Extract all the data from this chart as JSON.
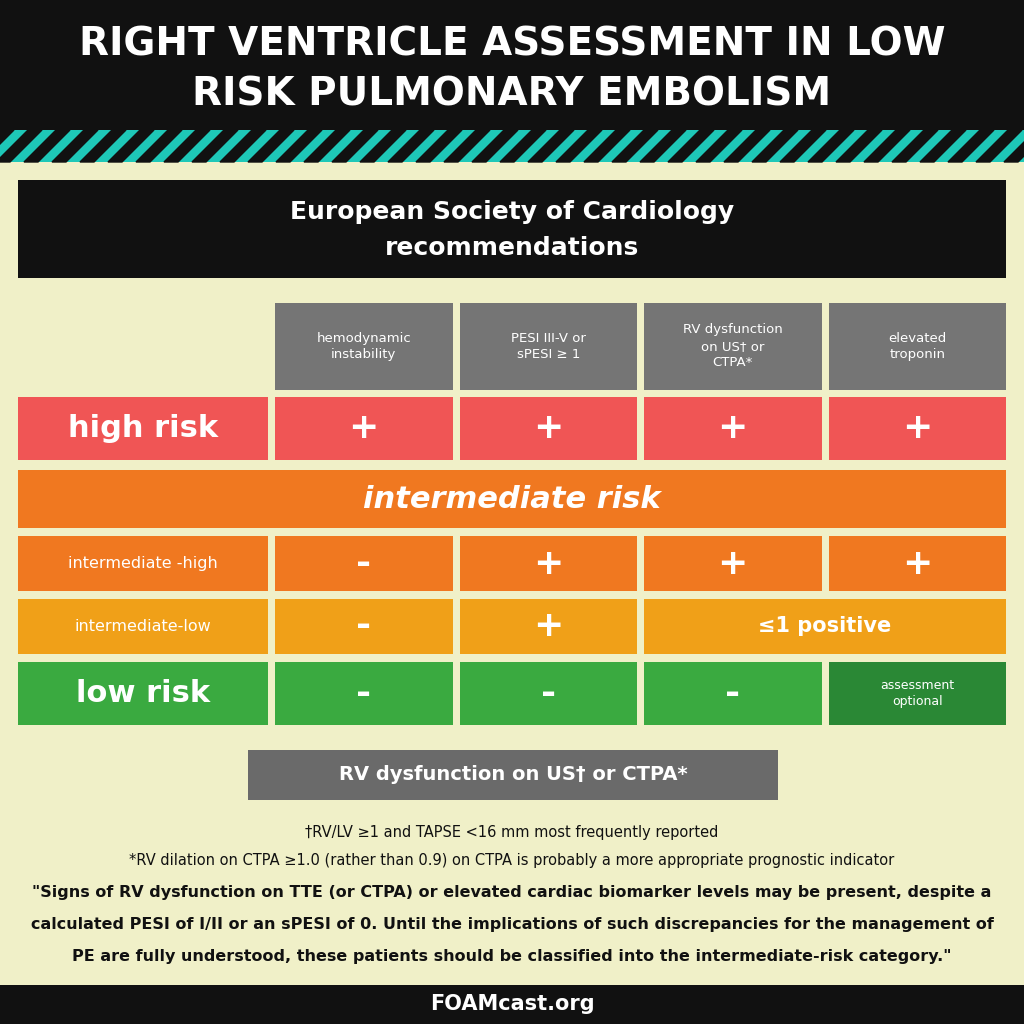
{
  "title_line1": "RIGHT VENTRICLE ASSESSMENT IN LOW",
  "title_line2": "RISK PULMONARY EMBOLISM",
  "bg_color": "#f0f0c8",
  "title_bg": "#111111",
  "title_color": "#ffffff",
  "stripe_teal": "#1ec8b8",
  "stripe_black": "#111111",
  "esc_title_line1": "European Society of Cardiology",
  "esc_title_line2": "recommendations",
  "esc_bg": "#111111",
  "esc_color": "#ffffff",
  "col_header_bg": "#757575",
  "col_header_color": "#ffffff",
  "col_headers": [
    "hemodynamic\ninstability",
    "PESI III-V or\nsPESI ≥ 1",
    "RV dysfunction\non US† or\nCTPA*",
    "elevated\ntroponin"
  ],
  "high_risk_color": "#f05555",
  "orange_color": "#f07820",
  "amber_color": "#f0a018",
  "green_color": "#3aaa40",
  "dark_green_color": "#2a8835",
  "rv_box_bg": "#6a6a6a",
  "rv_box_color": "#ffffff",
  "rv_title": "RV dysfunction on US† or CTPA*",
  "footnote1": "†RV/LV ≥1 and TAPSE <16 mm most frequently reported",
  "footnote2": "*RV dilation on CTPA ≥1.0 (rather than 0.9) on CTPA is probably a more appropriate prognostic indicator",
  "footnote3_line1": "\"Signs of RV dysfunction on TTE (or CTPA) or elevated cardiac biomarker levels may be present, despite a",
  "footnote3_line2": "calculated PESI of I/II or an sPESI of 0. Until the implications of such discrepancies for the management of",
  "footnote3_line3": "PE are fully understood, these patients should be classified into the intermediate-risk category.\"",
  "footer_text": "FOAMcast.org",
  "footer_bg": "#111111",
  "footer_color": "#ffffff"
}
